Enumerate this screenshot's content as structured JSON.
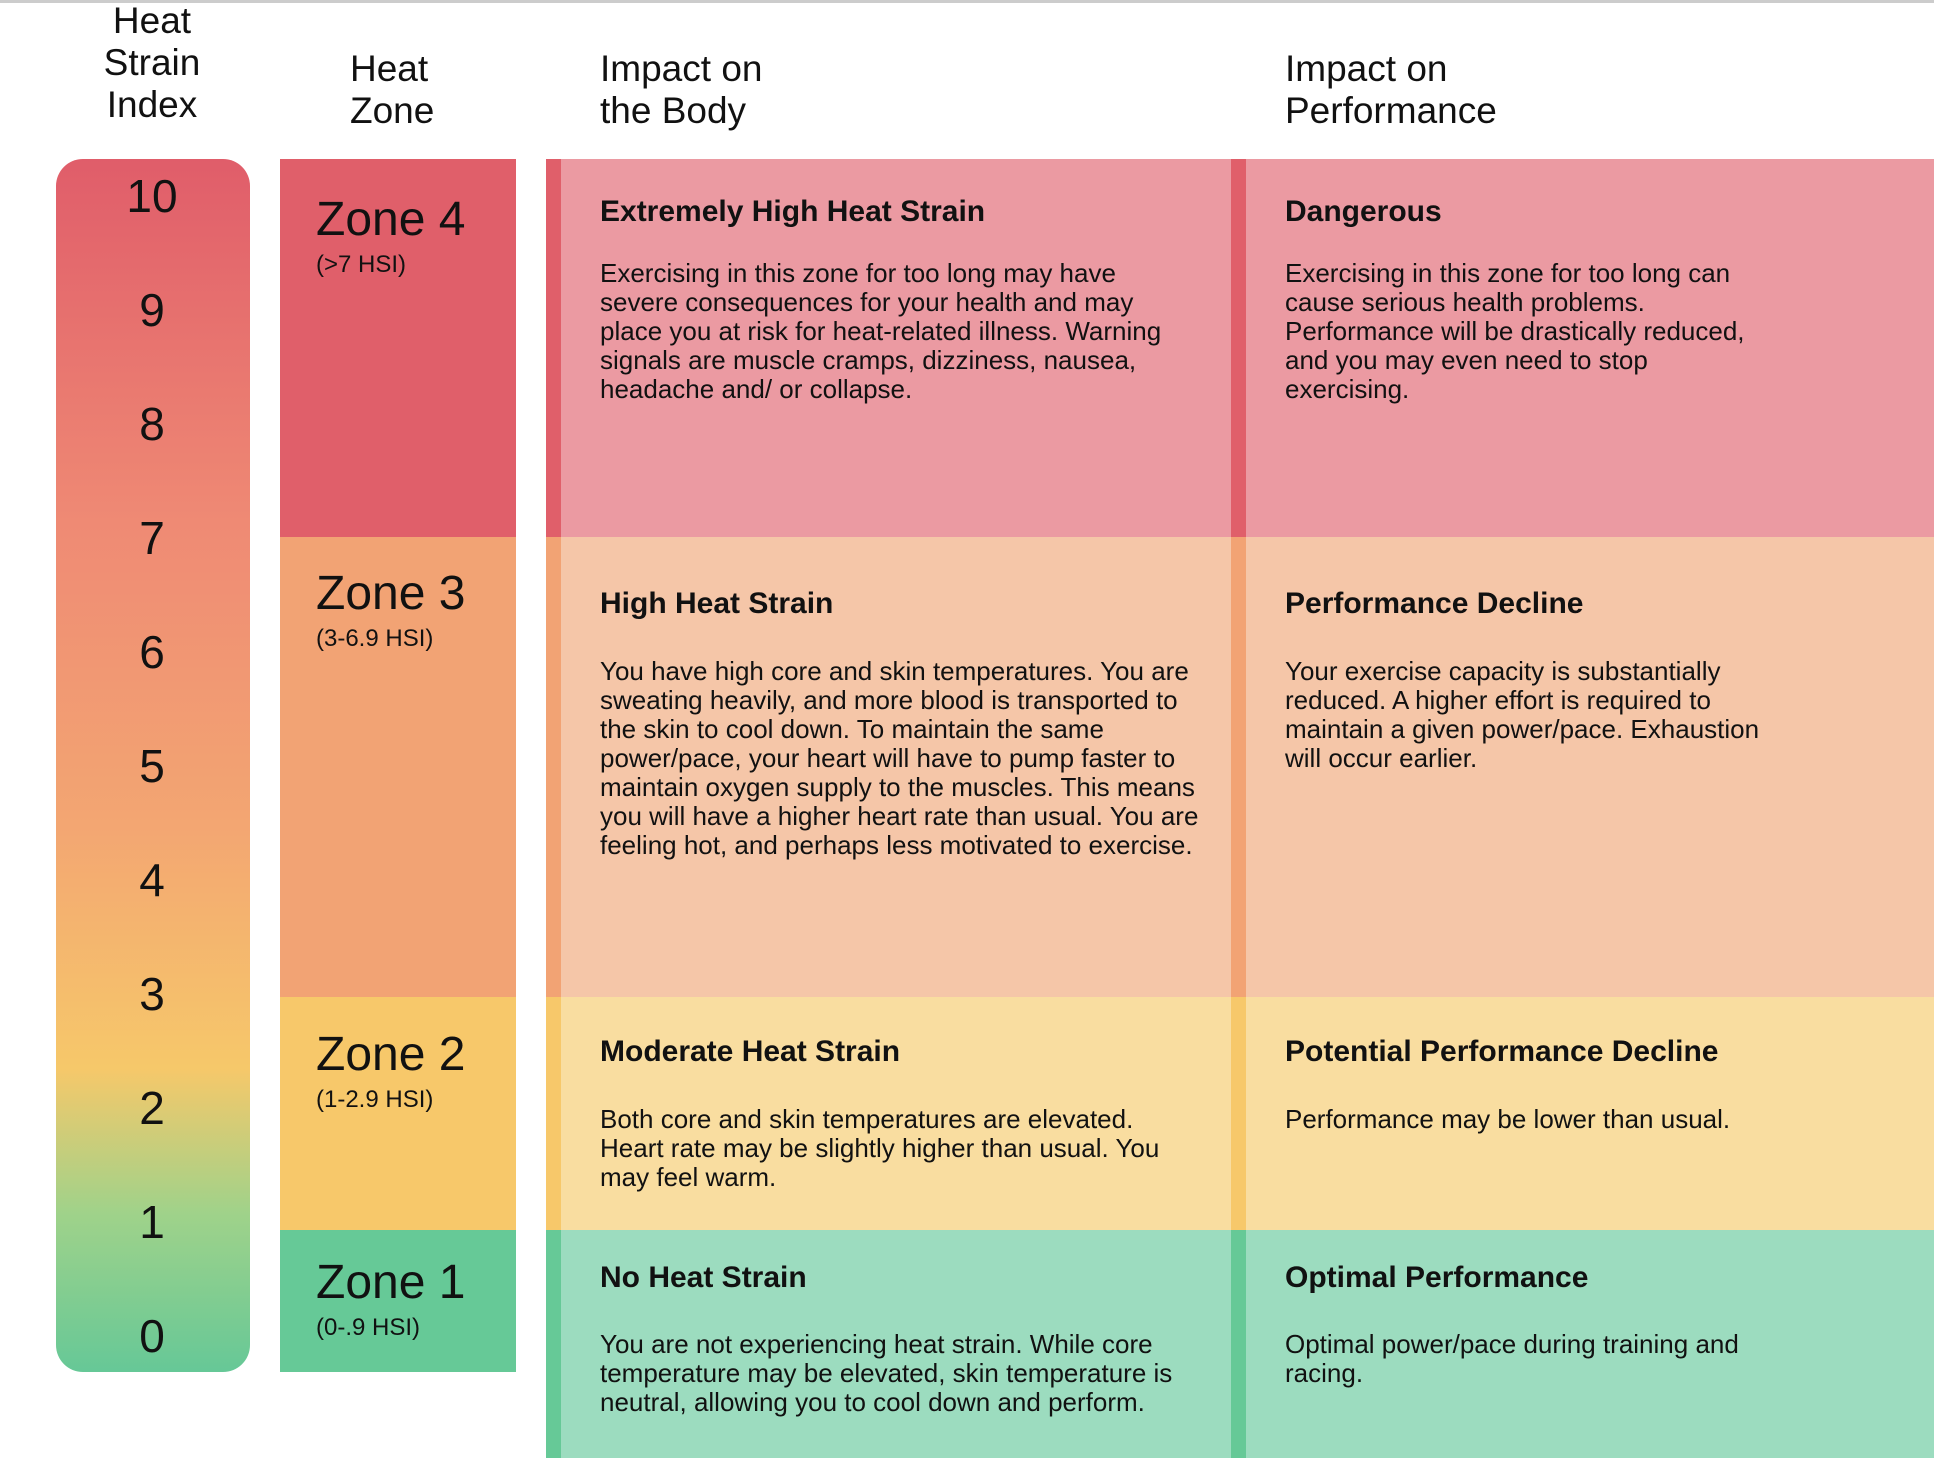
{
  "headers": {
    "index": "Heat Strain Index",
    "zone": "Heat Zone",
    "body": "Impact on the Body",
    "performance": "Impact on Performance"
  },
  "scale": [
    10,
    9,
    8,
    7,
    6,
    5,
    4,
    3,
    2,
    1,
    0
  ],
  "zones": [
    {
      "name": "Zone 4",
      "range": "(>7 HSI)",
      "body_title": "Extremely High Heat Strain",
      "body_text": "Exercising in this zone for too long may have severe consequences for your health and may place you at risk for heat-related illness. Warning signals are muscle cramps, dizziness, nausea, headache and/ or collapse.",
      "performance_title": "Dangerous",
      "performance_text": "Exercising in this zone for too long can cause serious health problems. Performance will be drastically reduced, and you may even need to stop exercising."
    },
    {
      "name": "Zone 3",
      "range": "(3-6.9 HSI)",
      "body_title": "High Heat Strain",
      "body_text": "You have high core and skin temperatures. You are sweating heavily, and more blood is transported to the skin to cool down. To maintain the same power/pace, your heart will have to pump faster to maintain oxygen supply to the muscles. This means you will have a higher heart rate than usual. You are feeling hot, and perhaps less motivated to exercise.",
      "performance_title": "Performance Decline",
      "performance_text": "Your exercise capacity is substantially reduced. A higher effort is required to maintain a given power/pace. Exhaustion will occur earlier."
    },
    {
      "name": "Zone 2",
      "range": "(1-2.9 HSI)",
      "body_title": "Moderate Heat Strain",
      "body_text": "Both core and skin temperatures are elevated. Heart rate may be slightly higher than usual. You may feel warm.",
      "performance_title": "Potential Performance Decline",
      "performance_text": "Performance may be lower than usual."
    },
    {
      "name": "Zone 1",
      "range": "(0-.9 HSI)",
      "body_title": "No Heat Strain",
      "body_text": "You are not experiencing heat strain. While core temperature may be elevated, skin temperature is neutral, allowing you to cool down and perform.",
      "performance_title": "Optimal Performance",
      "performance_text": "Optimal power/pace during training and racing."
    }
  ]
}
